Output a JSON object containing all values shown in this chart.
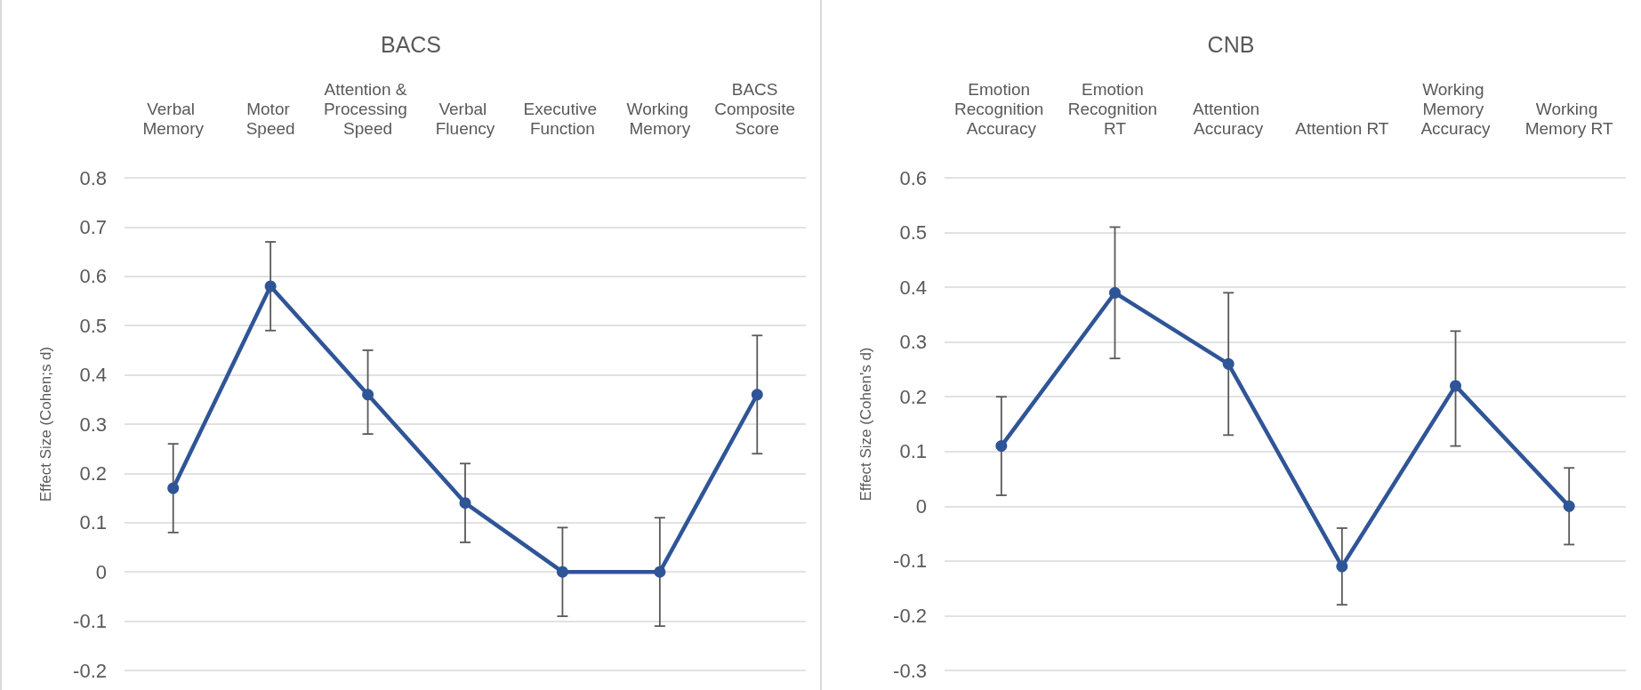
{
  "chart_data": [
    {
      "type": "line",
      "title": "BACS",
      "ylabel": "Effect Size (Cohen;s d)",
      "categories": [
        "Verbal Memory",
        "Motor Speed",
        "Attention & Processing Speed",
        "Verbal Fluency",
        "Executive Function",
        "Working Memory",
        "BACS Composite Score"
      ],
      "series": [
        {
          "color": "#2f5597",
          "values": [
            0.17,
            0.58,
            0.36,
            0.14,
            0,
            0,
            0.36
          ],
          "errors": [
            [
              0.08,
              0.26
            ],
            [
              0.49,
              0.67
            ],
            [
              0.28,
              0.45
            ],
            [
              0.06,
              0.22
            ],
            [
              -0.09,
              0.09
            ],
            [
              -0.11,
              0.11
            ],
            [
              0.24,
              0.48
            ]
          ]
        }
      ],
      "ylim": [
        -0.2,
        0.8
      ],
      "yticks": [
        -0.2,
        -0.1,
        0,
        0.1,
        0.2,
        0.3,
        0.4,
        0.5,
        0.6,
        0.7,
        0.8
      ],
      "grid": "y",
      "marker": "circle",
      "line_style": "solid"
    },
    {
      "type": "line",
      "title": "CNB",
      "ylabel": "Effect Size (Cohen's d)",
      "categories": [
        "Emotion Recognition Accuracy",
        "Emotion Recognition RT",
        "Attention Accuracy",
        "Attention RT",
        "Working Memory Accuracy",
        "Working Memory RT"
      ],
      "series": [
        {
          "color": "#2f5597",
          "values": [
            0.11,
            0.39,
            0.26,
            -0.11,
            0.22,
            0
          ],
          "errors": [
            [
              0.02,
              0.2
            ],
            [
              0.27,
              0.51
            ],
            [
              0.13,
              0.39
            ],
            [
              -0.18,
              -0.04
            ],
            [
              0.11,
              0.32
            ],
            [
              -0.07,
              0.07
            ]
          ]
        }
      ],
      "ylim": [
        -0.3,
        0.6
      ],
      "yticks": [
        -0.3,
        -0.2,
        -0.1,
        0,
        0.1,
        0.2,
        0.3,
        0.4,
        0.5,
        0.6
      ],
      "grid": "y",
      "marker": "circle",
      "line_style": "solid"
    }
  ]
}
